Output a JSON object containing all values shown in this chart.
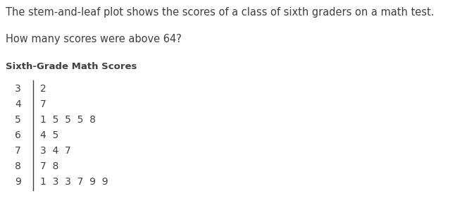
{
  "title_text": "The stem-and-leaf plot shows the scores of a class of sixth graders on a math test.",
  "question_text": "How many scores were above 64?",
  "table_title": "Sixth-Grade Math Scores",
  "stems": [
    "3",
    "4",
    "5",
    "6",
    "7",
    "8",
    "9"
  ],
  "leaves": [
    "2",
    "7",
    "1  5  5  5  8",
    "4  5",
    "3  4  7",
    "7  8",
    "1  3  3  7  9  9"
  ],
  "bg_color": "#ffffff",
  "text_color": "#404040",
  "title_fontsize": 10.5,
  "question_fontsize": 10.5,
  "table_title_fontsize": 9.5,
  "stem_fontsize": 10,
  "leaf_fontsize": 10
}
